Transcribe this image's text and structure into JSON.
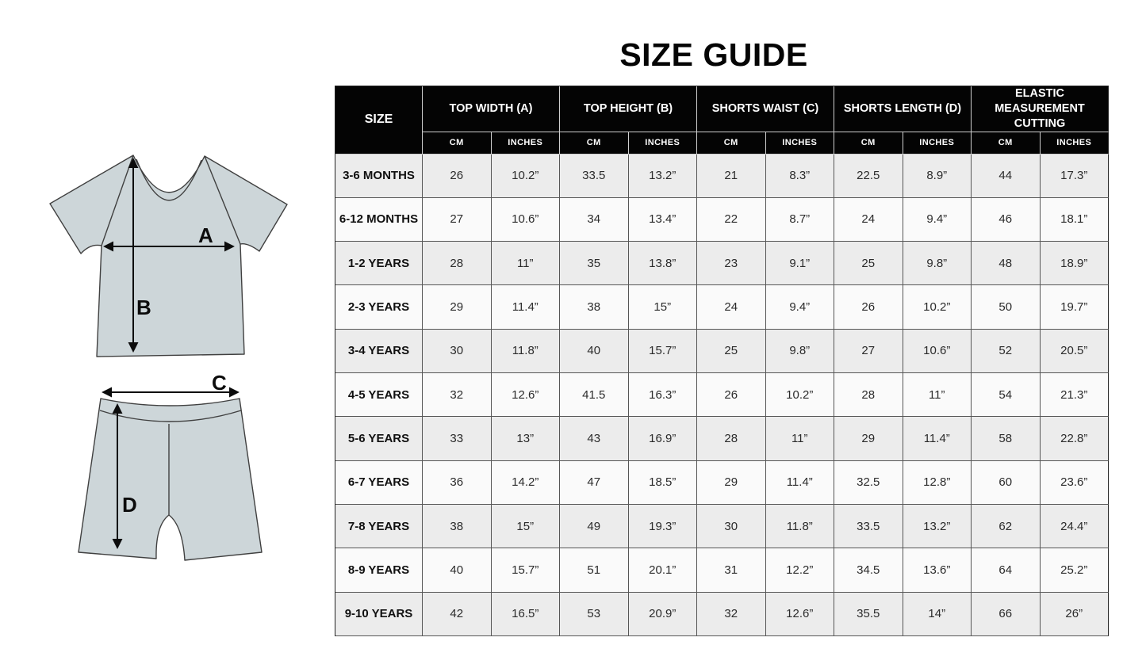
{
  "title": "SIZE GUIDE",
  "diagram": {
    "garment_fill": "#cdd6d9",
    "outline_color": "#404040",
    "labels": {
      "top_width": "A",
      "top_height": "B",
      "shorts_waist": "C",
      "shorts_length": "D"
    }
  },
  "colors": {
    "header_bg": "#040404",
    "header_text": "#ffffff",
    "row_alt_bg": "#ececec",
    "row_bg": "#fafafa",
    "grid_dark": "#565656",
    "grid_light": "#cfcfcf",
    "title_color": "#050505"
  },
  "chart_data": {
    "type": "table",
    "title": "SIZE GUIDE",
    "column_groups": [
      "SIZE",
      "TOP WIDTH (A)",
      "TOP HEIGHT (B)",
      "SHORTS WAIST (C)",
      "SHORTS LENGTH (D)",
      "ELASTIC MEASUREMENT CUTTING"
    ],
    "units": [
      "CM",
      "INCHES"
    ],
    "rows": [
      [
        "3-6 MONTHS",
        "26",
        "10.2”",
        "33.5",
        "13.2”",
        "21",
        "8.3”",
        "22.5",
        "8.9”",
        "44",
        "17.3”"
      ],
      [
        "6-12 MONTHS",
        "27",
        "10.6”",
        "34",
        "13.4”",
        "22",
        "8.7”",
        "24",
        "9.4”",
        "46",
        "18.1”"
      ],
      [
        "1-2 YEARS",
        "28",
        "11”",
        "35",
        "13.8”",
        "23",
        "9.1”",
        "25",
        "9.8”",
        "48",
        "18.9”"
      ],
      [
        "2-3 YEARS",
        "29",
        "11.4”",
        "38",
        "15”",
        "24",
        "9.4”",
        "26",
        "10.2”",
        "50",
        "19.7”"
      ],
      [
        "3-4 YEARS",
        "30",
        "11.8”",
        "40",
        "15.7”",
        "25",
        "9.8”",
        "27",
        "10.6”",
        "52",
        "20.5”"
      ],
      [
        "4-5 YEARS",
        "32",
        "12.6”",
        "41.5",
        "16.3”",
        "26",
        "10.2”",
        "28",
        "11”",
        "54",
        "21.3”"
      ],
      [
        "5-6 YEARS",
        "33",
        "13”",
        "43",
        "16.9”",
        "28",
        "11”",
        "29",
        "11.4”",
        "58",
        "22.8”"
      ],
      [
        "6-7 YEARS",
        "36",
        "14.2”",
        "47",
        "18.5”",
        "29",
        "11.4”",
        "32.5",
        "12.8”",
        "60",
        "23.6”"
      ],
      [
        "7-8 YEARS",
        "38",
        "15”",
        "49",
        "19.3”",
        "30",
        "11.8”",
        "33.5",
        "13.2”",
        "62",
        "24.4”"
      ],
      [
        "8-9 YEARS",
        "40",
        "15.7”",
        "51",
        "20.1”",
        "31",
        "12.2”",
        "34.5",
        "13.6”",
        "64",
        "25.2”"
      ],
      [
        "9-10 YEARS",
        "42",
        "16.5”",
        "53",
        "20.9”",
        "32",
        "12.6”",
        "35.5",
        "14”",
        "66",
        "26”"
      ]
    ]
  }
}
